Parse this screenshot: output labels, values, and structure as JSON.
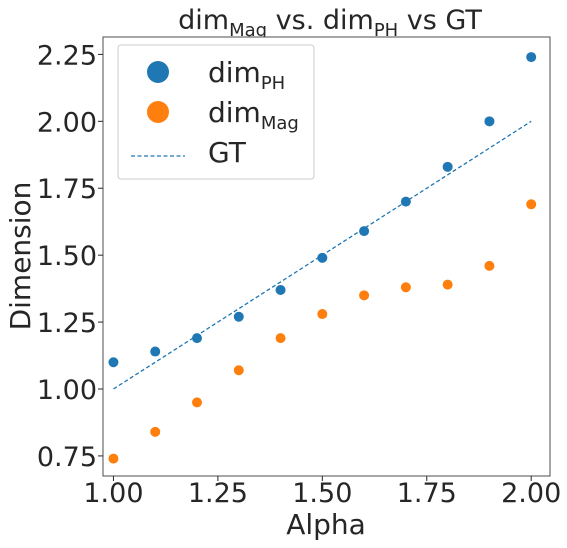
{
  "chart_data": {
    "type": "scatter",
    "title": {
      "parts": [
        {
          "text": "dim",
          "sub": false
        },
        {
          "text": "Mag",
          "sub": true
        },
        {
          "text": " vs. dim",
          "sub": false
        },
        {
          "text": "PH",
          "sub": true
        },
        {
          "text": " vs GT",
          "sub": false
        }
      ]
    },
    "xlabel": "Alpha",
    "ylabel": "Dimension",
    "xlim": [
      0.975,
      2.045
    ],
    "ylim": [
      0.675,
      2.315
    ],
    "xticks": [
      1.0,
      1.25,
      1.5,
      1.75,
      2.0
    ],
    "xtick_labels": [
      "1.00",
      "1.25",
      "1.50",
      "1.75",
      "2.00"
    ],
    "yticks": [
      0.75,
      1.0,
      1.25,
      1.5,
      1.75,
      2.0,
      2.25
    ],
    "ytick_labels": [
      "0.75",
      "1.00",
      "1.25",
      "1.50",
      "1.75",
      "2.00",
      "2.25"
    ],
    "grid": false,
    "legend_position": "top-left",
    "x": [
      1.0,
      1.1,
      1.2,
      1.3,
      1.4,
      1.5,
      1.6,
      1.7,
      1.8,
      1.9,
      2.0
    ],
    "series": [
      {
        "name": "dim",
        "name_sub": "PH",
        "kind": "scatter",
        "color": "#1f77b4",
        "values": [
          1.1,
          1.14,
          1.19,
          1.27,
          1.37,
          1.49,
          1.59,
          1.7,
          1.83,
          2.0,
          2.24
        ]
      },
      {
        "name": "dim",
        "name_sub": "Mag",
        "kind": "scatter",
        "color": "#ff7f0e",
        "values": [
          0.74,
          0.84,
          0.95,
          1.07,
          1.19,
          1.28,
          1.35,
          1.38,
          1.39,
          1.46,
          1.69
        ]
      },
      {
        "name": "GT",
        "name_sub": "",
        "kind": "dashed-line",
        "color": "#1f77b4",
        "x": [
          1.0,
          2.0
        ],
        "values": [
          1.0,
          2.0
        ]
      }
    ]
  }
}
